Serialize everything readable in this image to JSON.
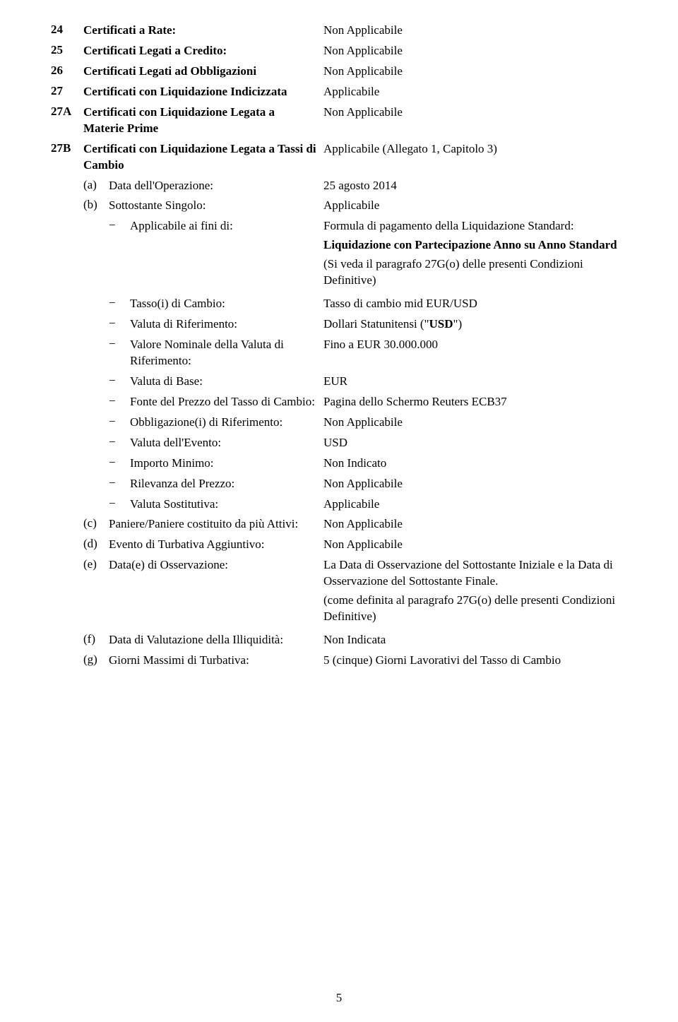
{
  "rows": {
    "r24": {
      "num": "24",
      "label": "Certificati a Rate:",
      "value": "Non Applicabile"
    },
    "r25": {
      "num": "25",
      "label": "Certificati Legati a Credito:",
      "value": "Non Applicabile"
    },
    "r26": {
      "num": "26",
      "label": "Certificati Legati ad Obbligazioni",
      "value": "Non Applicabile"
    },
    "r27": {
      "num": "27",
      "label": "Certificati con Liquidazione Indicizzata",
      "value": "Applicabile"
    },
    "r27A": {
      "num": "27A",
      "label": "Certificati con Liquidazione Legata a Materie Prime",
      "value": "Non Applicabile"
    },
    "r27B": {
      "num": "27B",
      "label": "Certificati con Liquidazione Legata a Tassi di Cambio",
      "value": "Applicabile (Allegato 1, Capitolo 3)"
    }
  },
  "sub_a": {
    "letter": "(a)",
    "label": "Data dell'Operazione:",
    "value": "25 agosto 2014"
  },
  "sub_b": {
    "letter": "(b)",
    "label": "Sottostante Singolo:",
    "value": "Applicabile"
  },
  "bul_applicabile_ai_fini": {
    "label": "Applicabile ai fini di:",
    "p1": "Formula di pagamento della Liquidazione Standard:",
    "p2_bold": "Liquidazione con Partecipazione Anno su Anno Standard",
    "p3": "(Si veda il paragrafo 27G(o) delle presenti Condizioni Definitive)"
  },
  "bul_tasso": {
    "label": "Tasso(i) di Cambio:",
    "value": "Tasso di cambio mid EUR/USD"
  },
  "bul_valuta_rif": {
    "label": "Valuta di Riferimento:",
    "pre": "Dollari Statunitensi (\"",
    "bold": "USD",
    "post": "\")"
  },
  "bul_valore_nom": {
    "label": "Valore Nominale della Valuta di Riferimento:",
    "value": "Fino a EUR 30.000.000"
  },
  "bul_valuta_base": {
    "label": "Valuta di Base:",
    "value": "EUR"
  },
  "bul_fonte_prezzo": {
    "label": "Fonte del Prezzo del Tasso di Cambio:",
    "value": "Pagina dello Schermo Reuters ECB37"
  },
  "bul_obbligazione": {
    "label": "Obbligazione(i) di Riferimento:",
    "value": "Non Applicabile"
  },
  "bul_valuta_evento": {
    "label": "Valuta dell'Evento:",
    "value": "USD"
  },
  "bul_importo_min": {
    "label": "Importo Minimo:",
    "value": "Non Indicato"
  },
  "bul_rilevanza": {
    "label": "Rilevanza del Prezzo:",
    "value": "Non Applicabile"
  },
  "bul_valuta_sost": {
    "label": "Valuta Sostitutiva:",
    "value": "Applicabile"
  },
  "sub_c": {
    "letter": "(c)",
    "label": "Paniere/Paniere costituito da più Attivi:",
    "value": "Non Applicabile"
  },
  "sub_d": {
    "letter": "(d)",
    "label": "Evento di Turbativa Aggiuntivo:",
    "value": "Non Applicabile"
  },
  "sub_e": {
    "letter": "(e)",
    "label": "Data(e) di Osservazione:",
    "p1": "La Data di Osservazione del Sottostante Iniziale e la Data di Osservazione del Sottostante Finale.",
    "p2": "(come definita al paragrafo 27G(o) delle presenti Condizioni Definitive)"
  },
  "sub_f": {
    "letter": "(f)",
    "label": "Data di Valutazione della Illiquidità:",
    "value": "Non Indicata"
  },
  "sub_g": {
    "letter": "(g)",
    "label": "Giorni Massimi di Turbativa:",
    "value": "5 (cinque) Giorni  Lavorativi del Tasso di Cambio"
  },
  "page_number": "5",
  "dash": "−"
}
